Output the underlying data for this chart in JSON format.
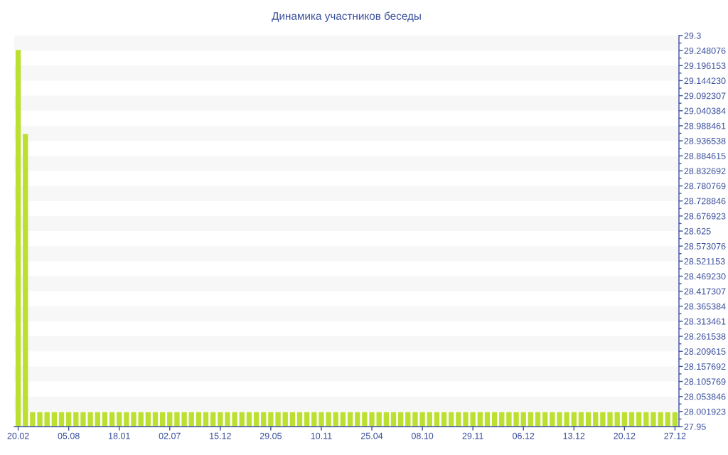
{
  "chart_data": {
    "type": "bar",
    "title": "Динамика участников беседы",
    "categories": [
      "20.02",
      null,
      null,
      null,
      null,
      null,
      null,
      "05.08",
      null,
      null,
      null,
      null,
      null,
      null,
      "18.01",
      null,
      null,
      null,
      null,
      null,
      null,
      "02.07",
      null,
      null,
      null,
      null,
      null,
      null,
      "15.12",
      null,
      null,
      null,
      null,
      null,
      null,
      "29.05",
      null,
      null,
      null,
      null,
      null,
      null,
      "10.11",
      null,
      null,
      null,
      null,
      null,
      null,
      "25.04",
      null,
      null,
      null,
      null,
      null,
      null,
      "08.10",
      null,
      null,
      null,
      null,
      null,
      null,
      "29.11",
      null,
      null,
      null,
      null,
      null,
      null,
      "06.12",
      null,
      null,
      null,
      null,
      null,
      null,
      "13.12",
      null,
      null,
      null,
      null,
      null,
      null,
      "20.12",
      null,
      null,
      null,
      null,
      null,
      null,
      "27.12"
    ],
    "values": [
      29.25,
      28.96,
      28.0,
      28.0,
      28.0,
      28.0,
      28.0,
      28.0,
      28.0,
      28.0,
      28.0,
      28.0,
      28.0,
      28.0,
      28.0,
      28.0,
      28.0,
      28.0,
      28.0,
      28.0,
      28.0,
      28.0,
      28.0,
      28.0,
      28.0,
      28.0,
      28.0,
      28.0,
      28.0,
      28.0,
      28.0,
      28.0,
      28.0,
      28.0,
      28.0,
      28.0,
      28.0,
      28.0,
      28.0,
      28.0,
      28.0,
      28.0,
      28.0,
      28.0,
      28.0,
      28.0,
      28.0,
      28.0,
      28.0,
      28.0,
      28.0,
      28.0,
      28.0,
      28.0,
      28.0,
      28.0,
      28.0,
      28.0,
      28.0,
      28.0,
      28.0,
      28.0,
      28.0,
      28.0,
      28.0,
      28.0,
      28.0,
      28.0,
      28.0,
      28.0,
      28.0,
      28.0,
      28.0,
      28.0,
      28.0,
      28.0,
      28.0,
      28.0,
      28.0,
      28.0,
      28.0,
      28.0,
      28.0,
      28.0,
      28.0,
      28.0,
      28.0,
      28.0,
      28.0,
      28.0,
      28.0,
      28.0
    ],
    "color": "#bce032",
    "ylim": [
      27.95,
      29.3
    ],
    "yticks": [
      27.95,
      {
        "value": 28.001923,
        "label": "28.001923"
      },
      {
        "value": 28.053846,
        "label": "28.053846"
      },
      {
        "value": 28.105769,
        "label": "28.105769"
      },
      {
        "value": 28.157692,
        "label": "28.157692"
      },
      {
        "value": 28.209615,
        "label": "28.209615"
      },
      {
        "value": 28.261538,
        "label": "28.261538"
      },
      {
        "value": 28.313461,
        "label": "28.313461"
      },
      {
        "value": 28.365384,
        "label": "28.365384"
      },
      {
        "value": 28.417307,
        "label": "28.417307"
      },
      {
        "value": 28.46923,
        "label": "28.469230"
      },
      {
        "value": 28.521153,
        "label": "28.521153"
      },
      {
        "value": 28.573076,
        "label": "28.573076"
      },
      28.625,
      {
        "value": 28.676923,
        "label": "28.676923"
      },
      {
        "value": 28.728846,
        "label": "28.728846"
      },
      {
        "value": 28.780769,
        "label": "28.780769"
      },
      {
        "value": 28.832692,
        "label": "28.832692"
      },
      {
        "value": 28.884615,
        "label": "28.884615"
      },
      {
        "value": 28.936538,
        "label": "28.936538"
      },
      {
        "value": 28.988461,
        "label": "28.988461"
      },
      {
        "value": 29.040384,
        "label": "29.040384"
      },
      {
        "value": 29.092307,
        "label": "29.092307"
      },
      {
        "value": 29.14423,
        "label": "29.144230"
      },
      {
        "value": 29.196153,
        "label": "29.196153"
      },
      {
        "value": 29.248076,
        "label": "29.248076"
      },
      29.3
    ],
    "bands": [
      {
        "axis": "y",
        "from": 28.001923,
        "to": 28.053846,
        "color": "#f7f7f7"
      },
      {
        "axis": "y",
        "from": 28.105769,
        "to": 28.157692,
        "color": "#f7f7f7"
      },
      {
        "axis": "y",
        "from": 28.209615,
        "to": 28.261538,
        "color": "#f7f7f7"
      },
      {
        "axis": "y",
        "from": 28.313461,
        "to": 28.365384,
        "color": "#f7f7f7"
      },
      {
        "axis": "y",
        "from": 28.417307,
        "to": 28.46923,
        "color": "#f7f7f7"
      },
      {
        "axis": "y",
        "from": 28.521153,
        "to": 28.573076,
        "color": "#f7f7f7"
      },
      {
        "axis": "y",
        "from": 28.625,
        "to": 28.676923,
        "color": "#f7f7f7"
      },
      {
        "axis": "y",
        "from": 28.728846,
        "to": 28.780769,
        "color": "#f7f7f7"
      },
      {
        "axis": "y",
        "from": 28.832692,
        "to": 28.884615,
        "color": "#f7f7f7"
      },
      {
        "axis": "y",
        "from": 28.936538,
        "to": 28.988461,
        "color": "#f7f7f7"
      },
      {
        "axis": "y",
        "from": 29.040384,
        "to": 29.092307,
        "color": "#f7f7f7"
      },
      {
        "axis": "y",
        "from": 29.14423,
        "to": 29.196153,
        "color": "#f7f7f7"
      },
      {
        "axis": "y",
        "from": 29.248076,
        "to": 29.3,
        "color": "#f7f7f7"
      }
    ]
  }
}
